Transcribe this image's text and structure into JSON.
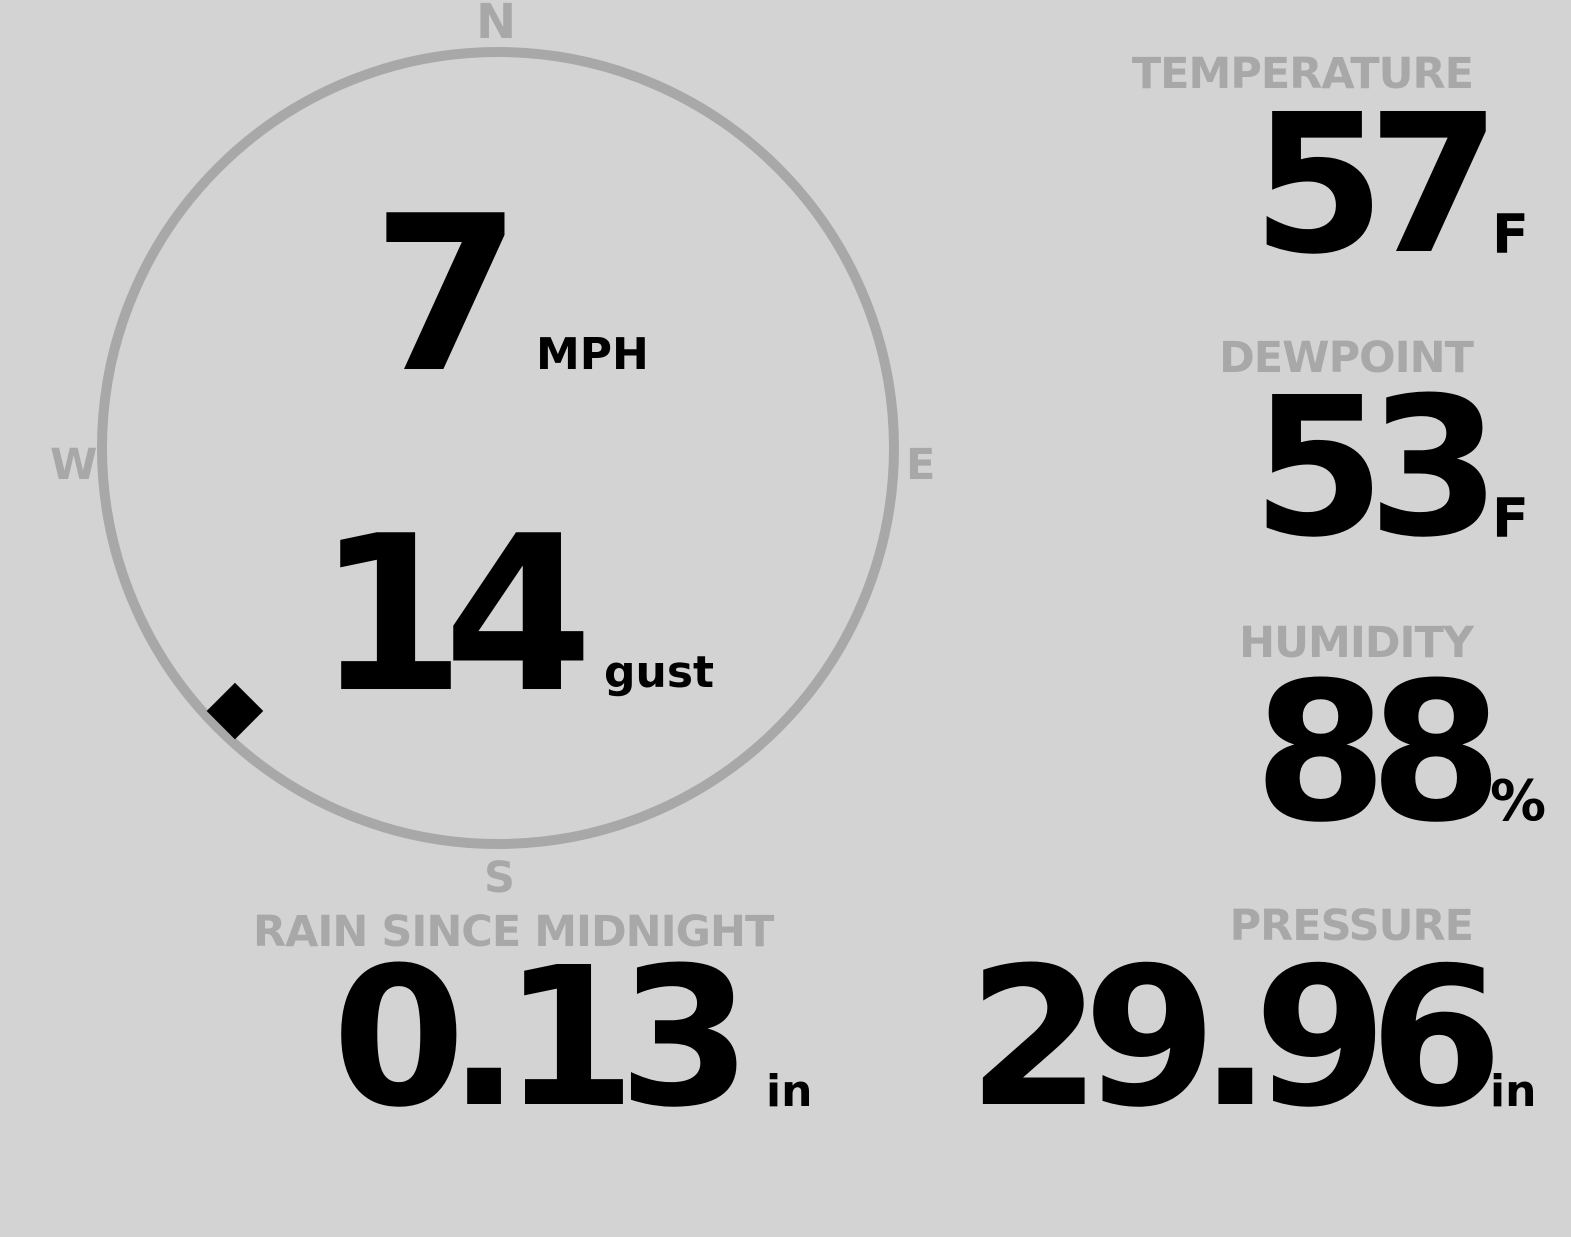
{
  "wind": {
    "compass": {
      "n": "N",
      "e": "E",
      "s": "S",
      "w": "W"
    },
    "direction_deg": 225,
    "speed": "7",
    "speed_unit": "MPH",
    "gust": "14",
    "gust_label": "gust",
    "ring_color": "#a8a8a8"
  },
  "temperature": {
    "label": "TEMPERATURE",
    "value": "57",
    "unit": "F"
  },
  "dewpoint": {
    "label": "DEWPOINT",
    "value": "53",
    "unit": "F"
  },
  "humidity": {
    "label": "HUMIDITY",
    "value": "88",
    "unit": "%"
  },
  "rain": {
    "label": "RAIN SINCE MIDNIGHT",
    "value": "0.13",
    "unit": "in"
  },
  "pressure": {
    "label": "PRESSURE",
    "value": "29.96",
    "unit": "in"
  },
  "colors": {
    "background": "#d3d3d3",
    "label": "#a8a8a8",
    "value": "#000000"
  }
}
